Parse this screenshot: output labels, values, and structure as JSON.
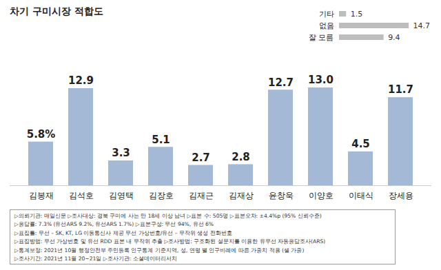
{
  "chart_data": [
    {
      "type": "bar",
      "title": "차기 구미시장 적합도",
      "categories": [
        "김봉재",
        "김석호",
        "김영택",
        "김장호",
        "김재근",
        "김재상",
        "윤창욱",
        "이양호",
        "이태식",
        "장세용"
      ],
      "values": [
        5.8,
        12.9,
        3.3,
        5.1,
        2.7,
        2.8,
        12.7,
        13.0,
        4.5,
        11.7
      ],
      "value_labels": [
        "5.8%",
        "12.9",
        "3.3",
        "5.1",
        "2.7",
        "2.8",
        "12.7",
        "13.0",
        "4.5",
        "11.7"
      ],
      "color": "#a3b9d6",
      "ylim": [
        0,
        14
      ],
      "data_labels": true,
      "tick_labels": "x",
      "notes": [
        "▷의뢰기관: 매일신문 ▷조사대상: 경북 구미에 사는 만 18세 이상 남녀 ▷표본 수: 505명 ▷표본오차: ±4.4%p (95% 신뢰수준)",
        "▷응답률: 7.3% (유선ARS 9.2%, 유선ARS 1.7%) ▷표본구성: 무선 94%, 유선 6%",
        "▷표집틀: 무선 – SK, KT, LG 이동통신사 제공 무선 가상번호/유선 – 무작위 생성 전화번호",
        "▷표집방법: 무선 가상번호 및 유선 RDD 표본 내 무작위 추출 ▷조사방법: 구조화된 설문지를 이용한 유무선 자동응답조사(ARS)",
        "▷통계보정: 2021년 10월 행정안전부 주민등록 인구통계 기준지역, 성, 연령 별 인구비례에 따른 가중치 적용 (셀 가중)",
        "▷조사기간: 2021년 11월 20~21일 ▷조사기관: 소셜데이터리서치"
      ]
    },
    {
      "type": "bar",
      "orientation": "horizontal",
      "categories": [
        "기타",
        "없음",
        "잘 모름"
      ],
      "values": [
        1.5,
        14.7,
        9.4
      ],
      "color": "#bdbdbd",
      "xlim": [
        0,
        16
      ],
      "data_labels": true,
      "tick_labels": "y"
    }
  ]
}
